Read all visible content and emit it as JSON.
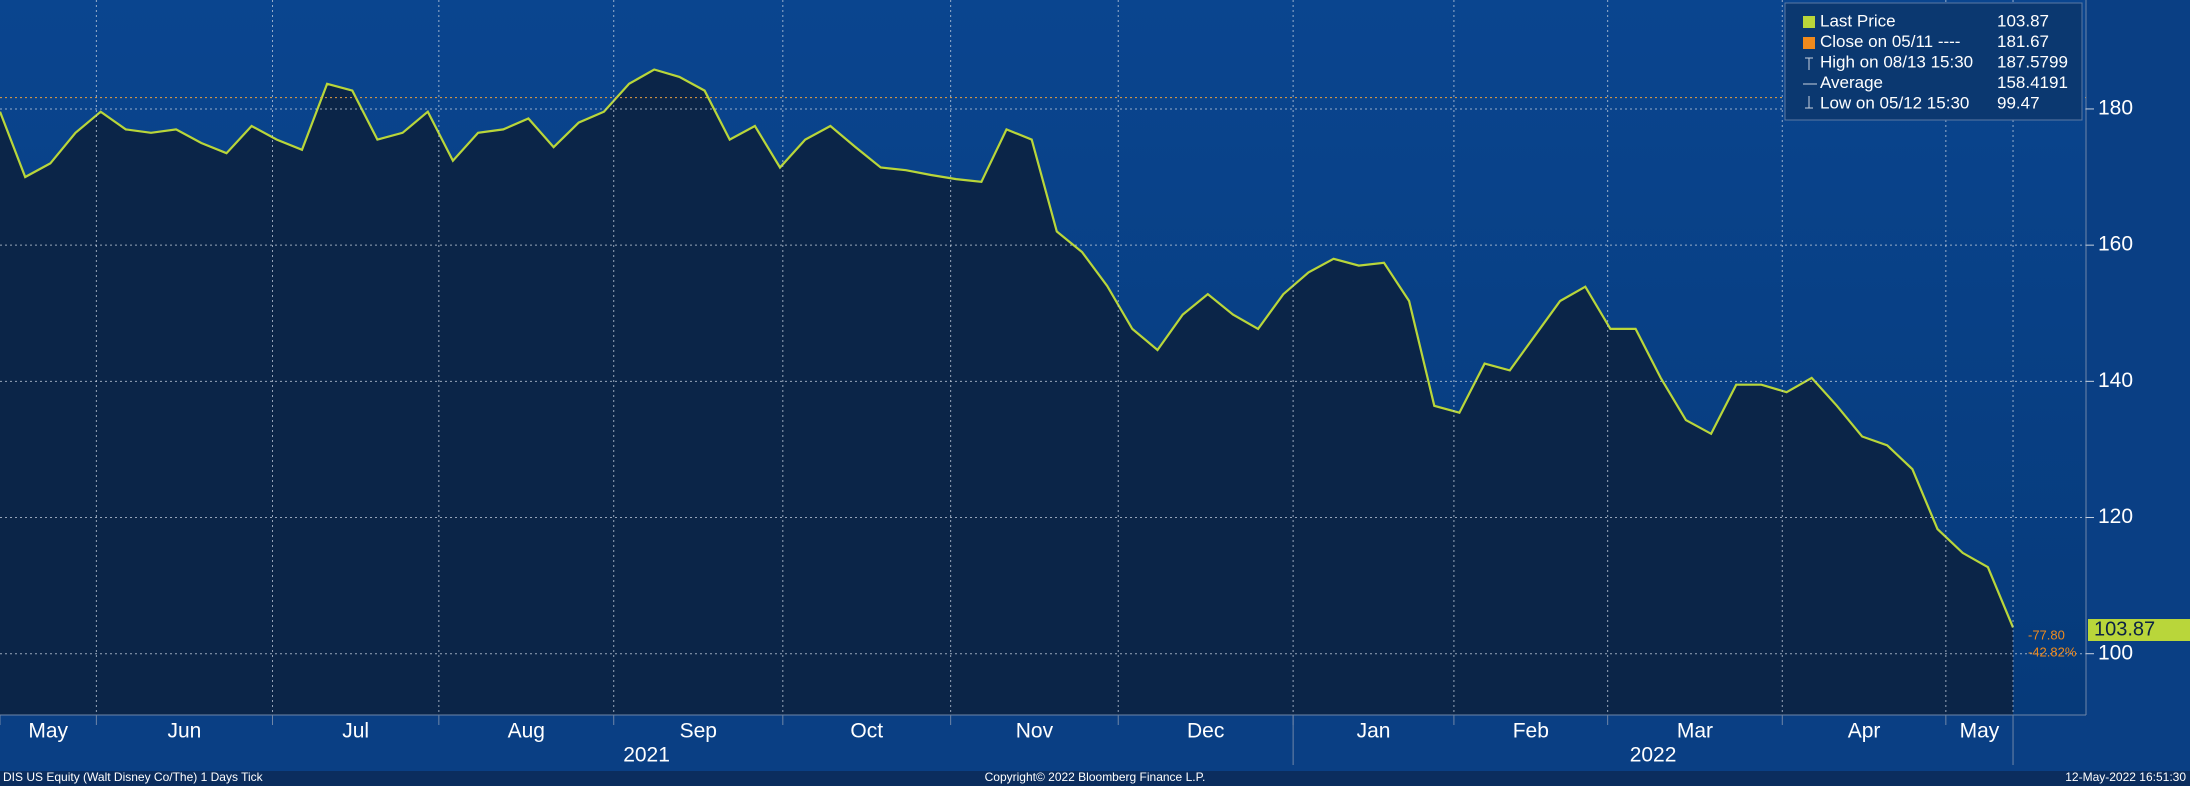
{
  "chart_data": {
    "type": "line",
    "series": [
      {
        "name": "Last Price",
        "color": "#b9d63a",
        "values": [
          179.6,
          170,
          172,
          176.5,
          179.6,
          177,
          176.5,
          177,
          175,
          173.5,
          177.5,
          175.5,
          174,
          183.7,
          182.7,
          175.5,
          176.5,
          179.6,
          172.4,
          176.5,
          177,
          178.6,
          174.4,
          178,
          179.6,
          183.7,
          185.8,
          184.7,
          182.7,
          175.5,
          177.5,
          171.4,
          175.5,
          177.5,
          174.4,
          171.4,
          171,
          170.3,
          169.7,
          169.3,
          177,
          175.5,
          162,
          159,
          154,
          147.7,
          144.6,
          149.8,
          152.8,
          149.8,
          147.7,
          152.8,
          156,
          158,
          157,
          157.4,
          151.8,
          136.4,
          135.4,
          142.6,
          141.6,
          146.7,
          151.8,
          153.9,
          147.7,
          147.7,
          140.5,
          134.3,
          132.3,
          139.5,
          139.5,
          138.4,
          140.5,
          136.4,
          131.9,
          130.6,
          127.1,
          118.3,
          114.8,
          112.7,
          103.87
        ]
      }
    ],
    "legend": [
      {
        "label": "Last Price",
        "value": 103.87
      },
      {
        "label": "Close on 05/11 ----",
        "value": 181.67
      },
      {
        "label": "High on 08/13 15:30",
        "value": 187.5799
      },
      {
        "label": "Average",
        "value": 158.4191
      },
      {
        "label": "Low on 05/12 15:30",
        "value": 99.47
      }
    ],
    "change": {
      "value": -77.8,
      "label": "-77.80"
    },
    "change_pct": {
      "value": -42.82,
      "label": "-42.82%"
    },
    "ylim": [
      91,
      196
    ],
    "yticks": [
      100,
      120,
      140,
      160,
      180
    ],
    "xlim": [
      0,
      82.9
    ],
    "xticks": [
      {
        "value": 0,
        "label": "May"
      },
      {
        "value": 3.83,
        "label": "Jun"
      },
      {
        "value": 10.83,
        "label": "Jul"
      },
      {
        "value": 17.44,
        "label": "Aug"
      },
      {
        "value": 24.39,
        "label": "Sep"
      },
      {
        "value": 31.11,
        "label": "Oct"
      },
      {
        "value": 37.78,
        "label": "Nov"
      },
      {
        "value": 44.44,
        "label": "Dec"
      },
      {
        "value": 51.39,
        "label": "Jan"
      },
      {
        "value": 57.78,
        "label": "Feb"
      },
      {
        "value": 63.89,
        "label": "Mar"
      },
      {
        "value": 70.83,
        "label": "Apr"
      },
      {
        "value": 77.33,
        "label": "May"
      }
    ],
    "years": [
      "2021",
      "2022"
    ],
    "grid": true,
    "footer_left": "DIS US Equity (Walt Disney Co/The) 1 Days  Tick",
    "footer_center": "Copyright© 2022 Bloomberg Finance L.P.",
    "footer_right": "12-May-2022 16:51:30"
  }
}
